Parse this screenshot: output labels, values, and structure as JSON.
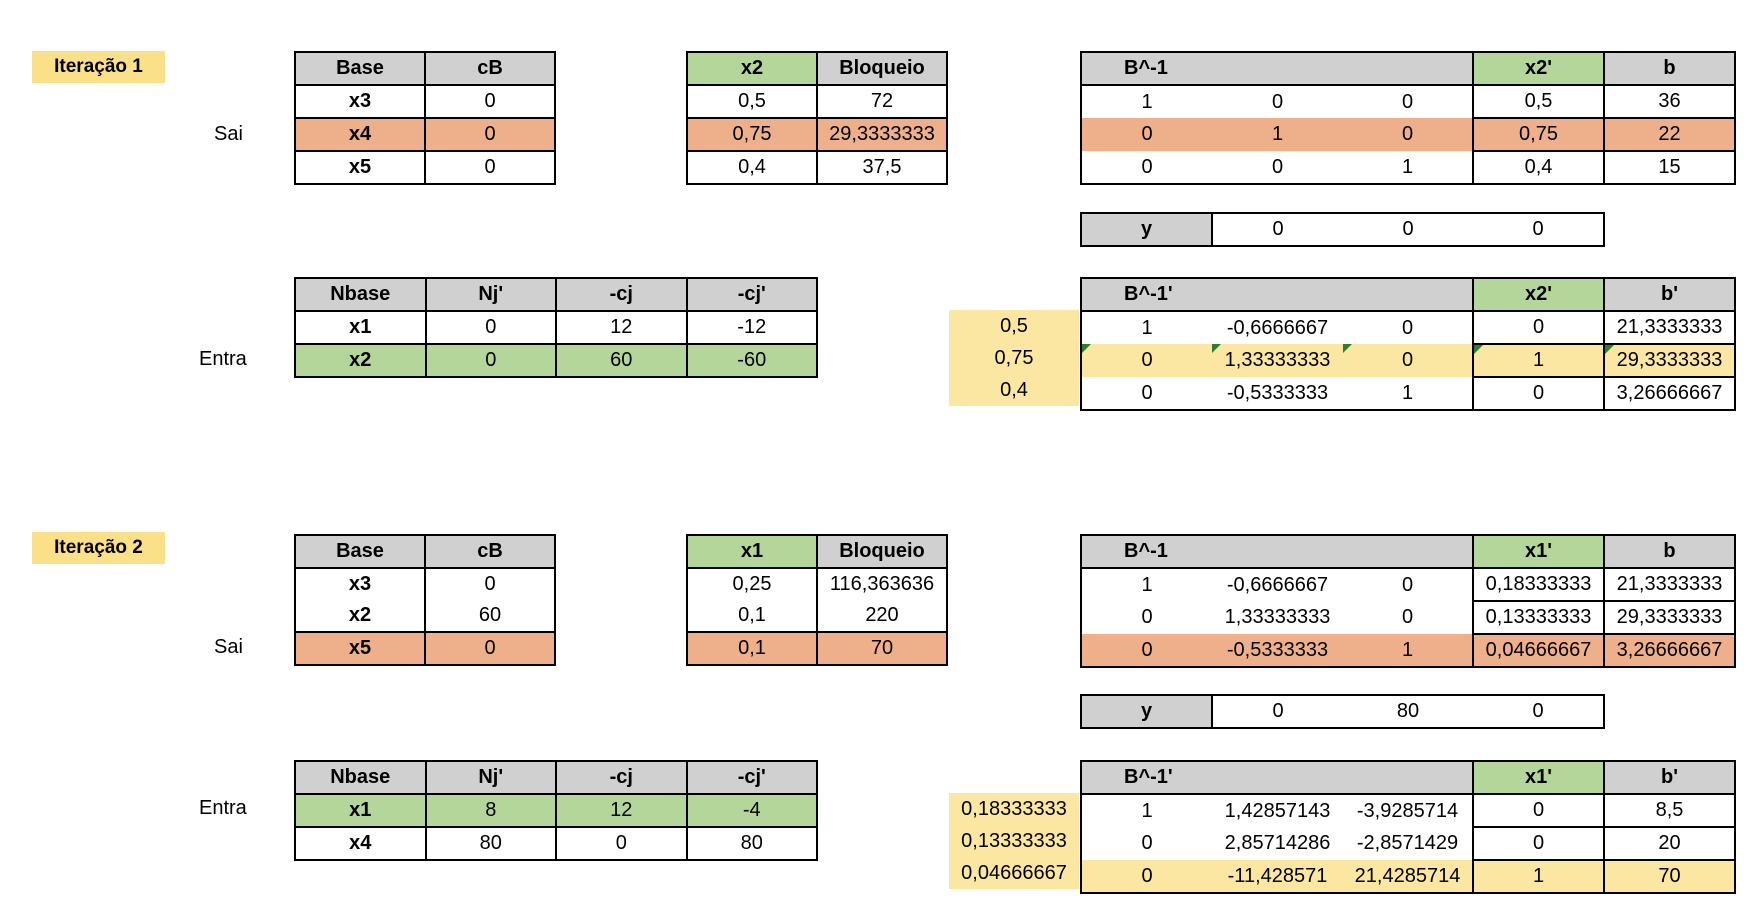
{
  "iterations": [
    {
      "title": "Iteração 1",
      "sai_label": "Sai",
      "entra_label": "Entra",
      "base_table": {
        "headers": [
          "Base",
          "cB"
        ],
        "rows": [
          [
            "x3",
            "0"
          ],
          [
            "x4",
            "0"
          ],
          [
            "x5",
            "0"
          ]
        ]
      },
      "block_table": {
        "headers": [
          "x2",
          "Bloqueio"
        ],
        "rows": [
          [
            "0,5",
            "72"
          ],
          [
            "0,75",
            "29,3333333"
          ],
          [
            "0,4",
            "37,5"
          ]
        ]
      },
      "binv_table": {
        "headers": [
          "B^-1",
          "x2'",
          "b"
        ],
        "rows": [
          [
            "1",
            "0",
            "0",
            "0,5",
            "36"
          ],
          [
            "0",
            "1",
            "0",
            "0,75",
            "22"
          ],
          [
            "0",
            "0",
            "1",
            "0,4",
            "15"
          ]
        ]
      },
      "y_row": {
        "label": "y",
        "values": [
          "0",
          "0",
          "0"
        ]
      },
      "nbase_table": {
        "headers": [
          "Nbase",
          "Nj'",
          "-cj",
          "-cj'"
        ],
        "rows": [
          [
            "x1",
            "0",
            "12",
            "-12"
          ],
          [
            "x2",
            "0",
            "60",
            "-60"
          ]
        ]
      },
      "binv2_table": {
        "headers": [
          "B^-1'",
          "x2'",
          "b'"
        ],
        "rows": [
          [
            "1",
            "-0,6666667",
            "0",
            "0",
            "21,3333333"
          ],
          [
            "0",
            "1,33333333",
            "0",
            "1",
            "29,3333333"
          ],
          [
            "0",
            "-0,5333333",
            "1",
            "0",
            "3,26666667"
          ]
        ]
      },
      "side_values": [
        "0,5",
        "0,75",
        "0,4"
      ]
    },
    {
      "title": "Iteração 2",
      "sai_label": "Sai",
      "entra_label": "Entra",
      "base_table": {
        "headers": [
          "Base",
          "cB"
        ],
        "rows": [
          [
            "x3",
            "0"
          ],
          [
            "x2",
            "60"
          ],
          [
            "x5",
            "0"
          ]
        ]
      },
      "block_table": {
        "headers": [
          "x1",
          "Bloqueio"
        ],
        "rows": [
          [
            "0,25",
            "116,363636"
          ],
          [
            "0,1",
            "220"
          ],
          [
            "0,1",
            "70"
          ]
        ]
      },
      "binv_table": {
        "headers": [
          "B^-1",
          "x1'",
          "b"
        ],
        "rows": [
          [
            "1",
            "-0,6666667",
            "0",
            "0,18333333",
            "21,3333333"
          ],
          [
            "0",
            "1,33333333",
            "0",
            "0,13333333",
            "29,3333333"
          ],
          [
            "0",
            "-0,5333333",
            "1",
            "0,04666667",
            "3,26666667"
          ]
        ]
      },
      "y_row": {
        "label": "y",
        "values": [
          "0",
          "80",
          "0"
        ]
      },
      "nbase_table": {
        "headers": [
          "Nbase",
          "Nj'",
          "-cj",
          "-cj'"
        ],
        "rows": [
          [
            "x1",
            "8",
            "12",
            "-4"
          ],
          [
            "x4",
            "80",
            "0",
            "80"
          ]
        ]
      },
      "binv2_table": {
        "headers": [
          "B^-1'",
          "x1'",
          "b'"
        ],
        "rows": [
          [
            "1",
            "1,42857143",
            "-3,9285714",
            "0",
            "8,5"
          ],
          [
            "0",
            "2,85714286",
            "-2,8571429",
            "0",
            "20"
          ],
          [
            "0",
            "-11,428571",
            "21,4285714",
            "1",
            "70"
          ]
        ]
      },
      "side_values": [
        "0,18333333",
        "0,13333333",
        "0,04666667"
      ]
    }
  ],
  "colors": {
    "header_gray": "#d0d0d0",
    "header_green": "#b4d69a",
    "highlight_orange": "#edb08a",
    "highlight_green": "#b4d69a",
    "highlight_yellow": "#fbe6a2",
    "iteration_label": "#fbe08a"
  }
}
